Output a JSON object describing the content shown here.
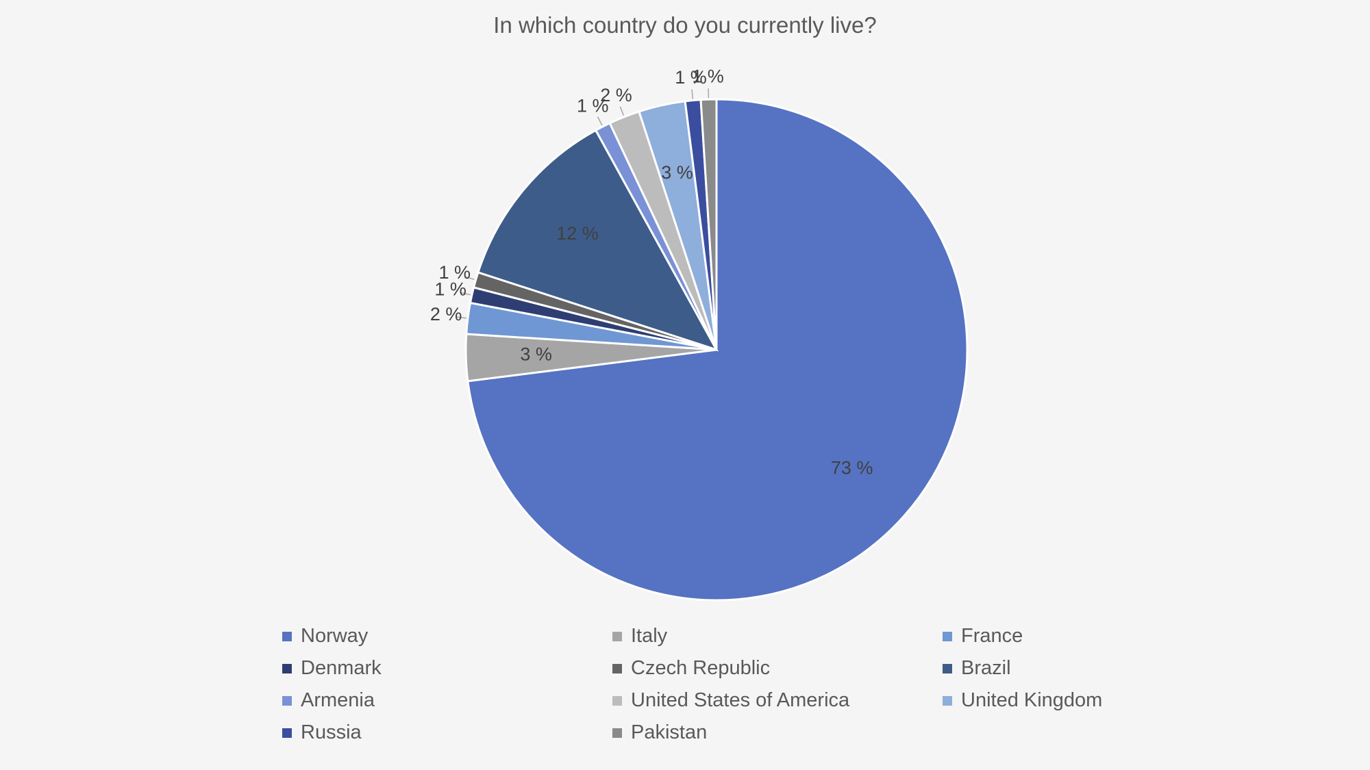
{
  "chart_data": {
    "type": "pie",
    "title": "In which country do you currently live?",
    "legend_position": "bottom",
    "slices": [
      {
        "name": "Norway",
        "value": 73,
        "label": "73 %",
        "color": "#5672c2"
      },
      {
        "name": "Italy",
        "value": 3,
        "label": "3 %",
        "color": "#a5a5a5"
      },
      {
        "name": "France",
        "value": 2,
        "label": "2 %",
        "color": "#6f97d3"
      },
      {
        "name": "Denmark",
        "value": 1,
        "label": "1 %",
        "color": "#2e3e72"
      },
      {
        "name": "Czech Republic",
        "value": 1,
        "label": "1 %",
        "color": "#646464"
      },
      {
        "name": "Brazil",
        "value": 12,
        "label": "12 %",
        "color": "#3d5c8a"
      },
      {
        "name": "Armenia",
        "value": 1,
        "label": "1 %",
        "color": "#7b91d5"
      },
      {
        "name": "United States of America",
        "value": 2,
        "label": "2 %",
        "color": "#bcbcbc"
      },
      {
        "name": "United Kingdom",
        "value": 3,
        "label": "3 %",
        "color": "#8eaedc"
      },
      {
        "name": "Russia",
        "value": 1,
        "label": "1 %",
        "color": "#3b4d9e"
      },
      {
        "name": "Pakistan",
        "value": 1,
        "label": "1 %",
        "color": "#8a8a8a"
      }
    ]
  }
}
